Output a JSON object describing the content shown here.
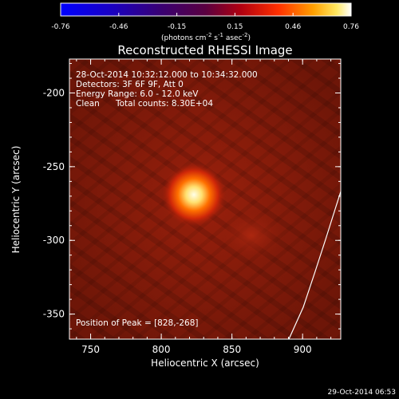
{
  "colorbar": {
    "ticks": [
      "-0.76",
      "-0.46",
      "-0.15",
      "0.15",
      "0.46",
      "0.76"
    ],
    "units_main": "(photons cm",
    "units_sup1": "-2",
    "units_mid1": " s",
    "units_sup2": "-1",
    "units_mid2": " asec",
    "units_sup3": "-2",
    "units_end": ")"
  },
  "title": "Reconstructed RHESSI Image",
  "info": {
    "time_range": "28-Oct-2014 10:32:12.000 to 10:34:32.000",
    "detectors": "Detectors: 3F 6F 9F, Att 0",
    "energy": "Energy Range: 6.0 - 12.0 keV",
    "clean": "Clean",
    "counts": "Total counts: 8.30E+04",
    "peak": "Position of Peak = [828,-268]"
  },
  "axes": {
    "xlabel": "Heliocentric X (arcsec)",
    "ylabel": "Heliocentric Y (arcsec)",
    "xticks": [
      "750",
      "800",
      "850",
      "900"
    ],
    "yticks": [
      "-200",
      "-250",
      "-300",
      "-350"
    ],
    "xrange": [
      735,
      927
    ],
    "yrange": [
      -367,
      -177
    ]
  },
  "footer_timestamp": "29-Oct-2014 06:53",
  "colors": {
    "background": "#000000",
    "axis": "#ffffff",
    "source_peak": "#fff8d0",
    "image_base": "#8a1c0a"
  }
}
